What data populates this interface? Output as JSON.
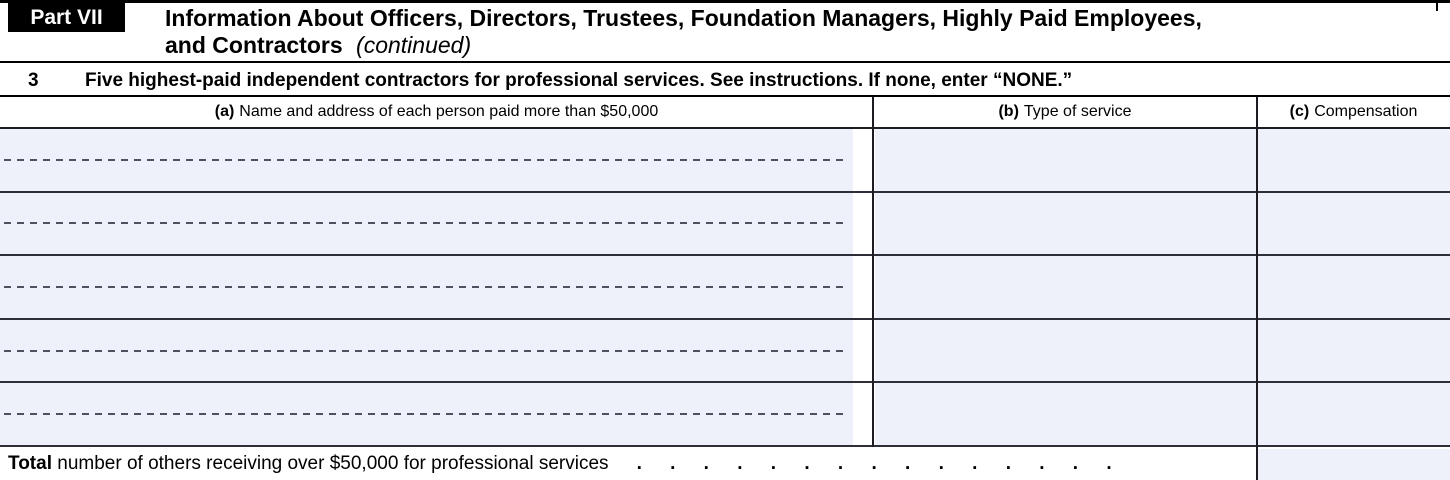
{
  "part_header": {
    "badge": "Part VII",
    "title_line1": "Information About Officers, Directors, Trustees, Foundation Managers, Highly Paid Employees,",
    "title_line2_bold": "and Contractors",
    "title_line2_italic": "(continued)"
  },
  "section3": {
    "number": "3",
    "text": "Five highest-paid independent contractors for professional services. See instructions. If none, enter “NONE.”"
  },
  "table": {
    "row_count": 5,
    "columns": [
      {
        "tag": "(a)",
        "label": "Name and address of each person paid more than $50,000"
      },
      {
        "tag": "(b)",
        "label": "Type of service"
      },
      {
        "tag": "(c)",
        "label": "Compensation"
      }
    ]
  },
  "total_row": {
    "bold_label": "Total",
    "text": " number of others receiving over $50,000 for professional services",
    "dots": ". . . . . . . . . . . . . . ."
  },
  "colors": {
    "field_bg": "#eef0fa",
    "line": "#000000",
    "dash": "#4d5160"
  }
}
